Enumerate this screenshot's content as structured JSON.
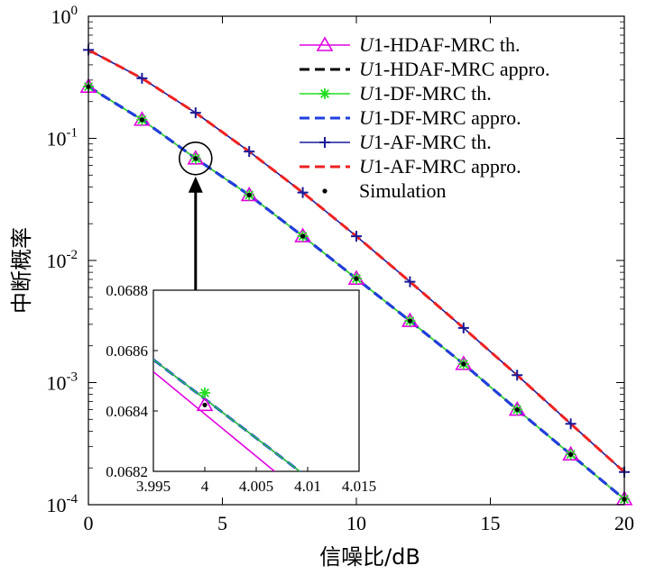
{
  "chart_data": {
    "type": "line",
    "xlabel": "信噪比/dB",
    "ylabel": "中断概率",
    "xlim": [
      0,
      20
    ],
    "ylim": [
      0.0001,
      1
    ],
    "yscale": "log",
    "x_ticks": [
      0,
      5,
      10,
      15,
      20
    ],
    "y_ticks": [
      {
        "value": 1,
        "base": "10",
        "exp": "0"
      },
      {
        "value": 0.1,
        "base": "10",
        "exp": "-1"
      },
      {
        "value": 0.01,
        "base": "10",
        "exp": "-2"
      },
      {
        "value": 0.001,
        "base": "10",
        "exp": "-3"
      },
      {
        "value": 0.0001,
        "base": "10",
        "exp": "-4"
      }
    ],
    "legend_position": "top-right",
    "legend": [
      {
        "prefix": "U",
        "label": "1-HDAF-MRC th.",
        "color": "#e000e0",
        "style": "solid",
        "marker": "triangle"
      },
      {
        "prefix": "U",
        "label": "1-HDAF-MRC appro.",
        "color": "#000000",
        "style": "dashed",
        "marker": "none"
      },
      {
        "prefix": "U",
        "label": "1-DF-MRC th.",
        "color": "#22dd22",
        "style": "solid",
        "marker": "star"
      },
      {
        "prefix": "U",
        "label": "1-DF-MRC appro.",
        "color": "#1f3fe0",
        "style": "dashed",
        "marker": "none"
      },
      {
        "prefix": "U",
        "label": "1-AF-MRC th.",
        "color": "#1a1a9a",
        "style": "solid",
        "marker": "plus"
      },
      {
        "prefix": "U",
        "label": "1-AF-MRC appro.",
        "color": "#ee2222",
        "style": "dashed",
        "marker": "none"
      },
      {
        "prefix": "",
        "label": "Simulation",
        "color": "#000000",
        "style": "none",
        "marker": "dot"
      }
    ],
    "x": [
      0,
      2,
      4,
      6,
      8,
      10,
      12,
      14,
      16,
      18,
      20
    ],
    "series": [
      {
        "name": "U1-HDAF-MRC th.",
        "values": [
          0.265,
          0.142,
          0.0684,
          0.0343,
          0.0158,
          0.0071,
          0.0032,
          0.00142,
          0.0006,
          0.000258,
          0.000111
        ]
      },
      {
        "name": "U1-HDAF-MRC appro.",
        "values": [
          0.265,
          0.142,
          0.0685,
          0.0343,
          0.0158,
          0.0071,
          0.0032,
          0.00142,
          0.0006,
          0.000258,
          0.000111
        ]
      },
      {
        "name": "U1-DF-MRC th.",
        "values": [
          0.265,
          0.142,
          0.0685,
          0.0343,
          0.0158,
          0.0071,
          0.0032,
          0.00142,
          0.0006,
          0.000258,
          0.000111
        ]
      },
      {
        "name": "U1-DF-MRC appro.",
        "values": [
          0.265,
          0.142,
          0.0685,
          0.0343,
          0.0158,
          0.0071,
          0.0032,
          0.00142,
          0.0006,
          0.000258,
          0.000111
        ]
      },
      {
        "name": "U1-AF-MRC th.",
        "values": [
          0.53,
          0.31,
          0.162,
          0.078,
          0.036,
          0.0158,
          0.0067,
          0.0028,
          0.00115,
          0.00046,
          0.000185
        ]
      },
      {
        "name": "U1-AF-MRC appro.",
        "values": [
          0.53,
          0.31,
          0.162,
          0.078,
          0.036,
          0.0158,
          0.0067,
          0.0028,
          0.00115,
          0.00046,
          0.000185
        ]
      },
      {
        "name": "Simulation",
        "values": [
          0.265,
          0.142,
          0.0684,
          0.0343,
          0.0158,
          0.0071,
          0.0032,
          0.00142,
          0.0006,
          0.000258,
          0.000111
        ]
      }
    ],
    "inset": {
      "xlim": [
        3.995,
        4.015
      ],
      "ylim": [
        0.0682,
        0.0688
      ],
      "x_ticks": [
        "3.995",
        "4",
        "4.005",
        "4.01",
        "4.015"
      ],
      "y_ticks": [
        "0.0688",
        "0.0686",
        "0.0684",
        "0.0682"
      ],
      "line_upper": {
        "x": [
          3.995,
          4.015
        ],
        "y": [
          0.06857,
          0.06805
        ]
      },
      "line_lower": {
        "x": [
          3.995,
          4.015
        ],
        "y": [
          0.06853,
          0.06797
        ]
      },
      "point_green": {
        "x": 4.0,
        "y": 0.06846
      },
      "point_magenta": {
        "x": 4.0,
        "y": 0.06842
      },
      "focus_x": 4,
      "focus_y": 0.0685
    }
  }
}
